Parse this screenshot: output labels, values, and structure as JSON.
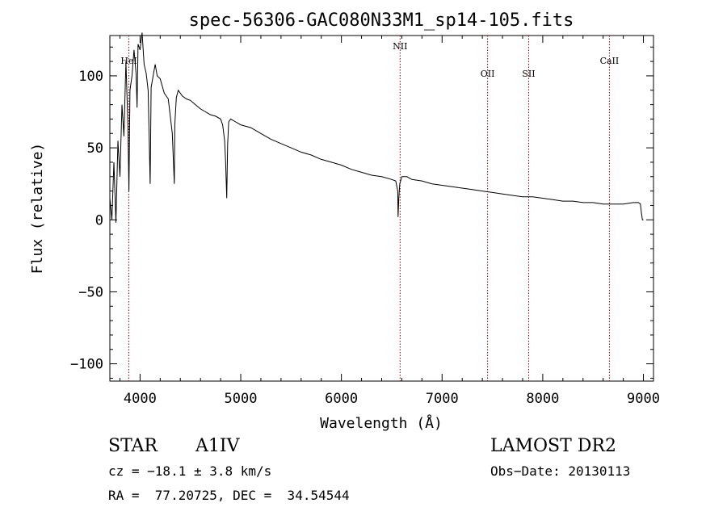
{
  "chart_data": {
    "type": "line",
    "title": "spec-56306-GAC080N33M1_sp14-105.fits",
    "xlabel": "Wavelength (Å)",
    "ylabel": "Flux (relative)",
    "xlim": [
      3700,
      9100
    ],
    "ylim": [
      -112,
      128
    ],
    "x_ticks": [
      4000,
      5000,
      6000,
      7000,
      8000,
      9000
    ],
    "y_ticks": [
      -100,
      -50,
      0,
      50,
      100
    ],
    "grid": false,
    "legend": "none",
    "line_color": "#000000",
    "marker_color": "#8b0000",
    "lines": [
      {
        "name": "HeI",
        "x": 3889
      },
      {
        "name": "NII",
        "x": 6583
      },
      {
        "name": "OII",
        "x": 7452
      },
      {
        "name": "SII",
        "x": 7860
      },
      {
        "name": "CaII",
        "x": 8662
      }
    ],
    "series": [
      {
        "x": [
          3700,
          3720,
          3740,
          3760,
          3780,
          3800,
          3820,
          3840,
          3860,
          3880,
          3889,
          3900,
          3920,
          3940,
          3960,
          3970,
          3980,
          4000,
          4020,
          4040,
          4060,
          4080,
          4100,
          4101,
          4110,
          4130,
          4150,
          4170,
          4200,
          4240,
          4280,
          4320,
          4340,
          4342,
          4345,
          4360,
          4380,
          4420,
          4460,
          4500,
          4550,
          4600,
          4650,
          4700,
          4750,
          4800,
          4820,
          4840,
          4850,
          4861,
          4870,
          4880,
          4900,
          4950,
          5000,
          5100,
          5200,
          5300,
          5400,
          5500,
          5600,
          5700,
          5800,
          5900,
          6000,
          6100,
          6200,
          6300,
          6400,
          6500,
          6540,
          6560,
          6563,
          6570,
          6580,
          6600,
          6650,
          6700,
          6800,
          6900,
          7000,
          7100,
          7200,
          7300,
          7400,
          7500,
          7600,
          7700,
          7800,
          7900,
          8000,
          8100,
          8200,
          8300,
          8400,
          8500,
          8600,
          8700,
          8800,
          8900,
          8950,
          8970,
          8980,
          8990,
          9000
        ],
        "values": [
          15,
          0,
          40,
          -2,
          55,
          30,
          80,
          58,
          110,
          65,
          20,
          90,
          100,
          118,
          102,
          78,
          122,
          118,
          130,
          108,
          102,
          90,
          25,
          30,
          92,
          100,
          108,
          100,
          98,
          88,
          84,
          60,
          25,
          38,
          66,
          85,
          90,
          86,
          84,
          83,
          80,
          77,
          75,
          73,
          72,
          70,
          66,
          55,
          40,
          15,
          52,
          68,
          70,
          68,
          66,
          64,
          60,
          56,
          53,
          50,
          47,
          45,
          42,
          40,
          38,
          35,
          33,
          31,
          30,
          28,
          27,
          20,
          2,
          15,
          25,
          30,
          30,
          28,
          27,
          25,
          24,
          23,
          22,
          21,
          20,
          19,
          18,
          17,
          16,
          16,
          15,
          14,
          13,
          13,
          12,
          12,
          11,
          11,
          11,
          12,
          12,
          11,
          5,
          0,
          0
        ]
      }
    ]
  },
  "info": {
    "object_class": "STAR",
    "subclass": "A1IV",
    "survey": "LAMOST DR2",
    "cz": "cz = −18.1 ± 3.8 km/s",
    "obs_date": "Obs−Date: 20130113",
    "radec": "RA =  77.20725, DEC =  34.54544"
  }
}
